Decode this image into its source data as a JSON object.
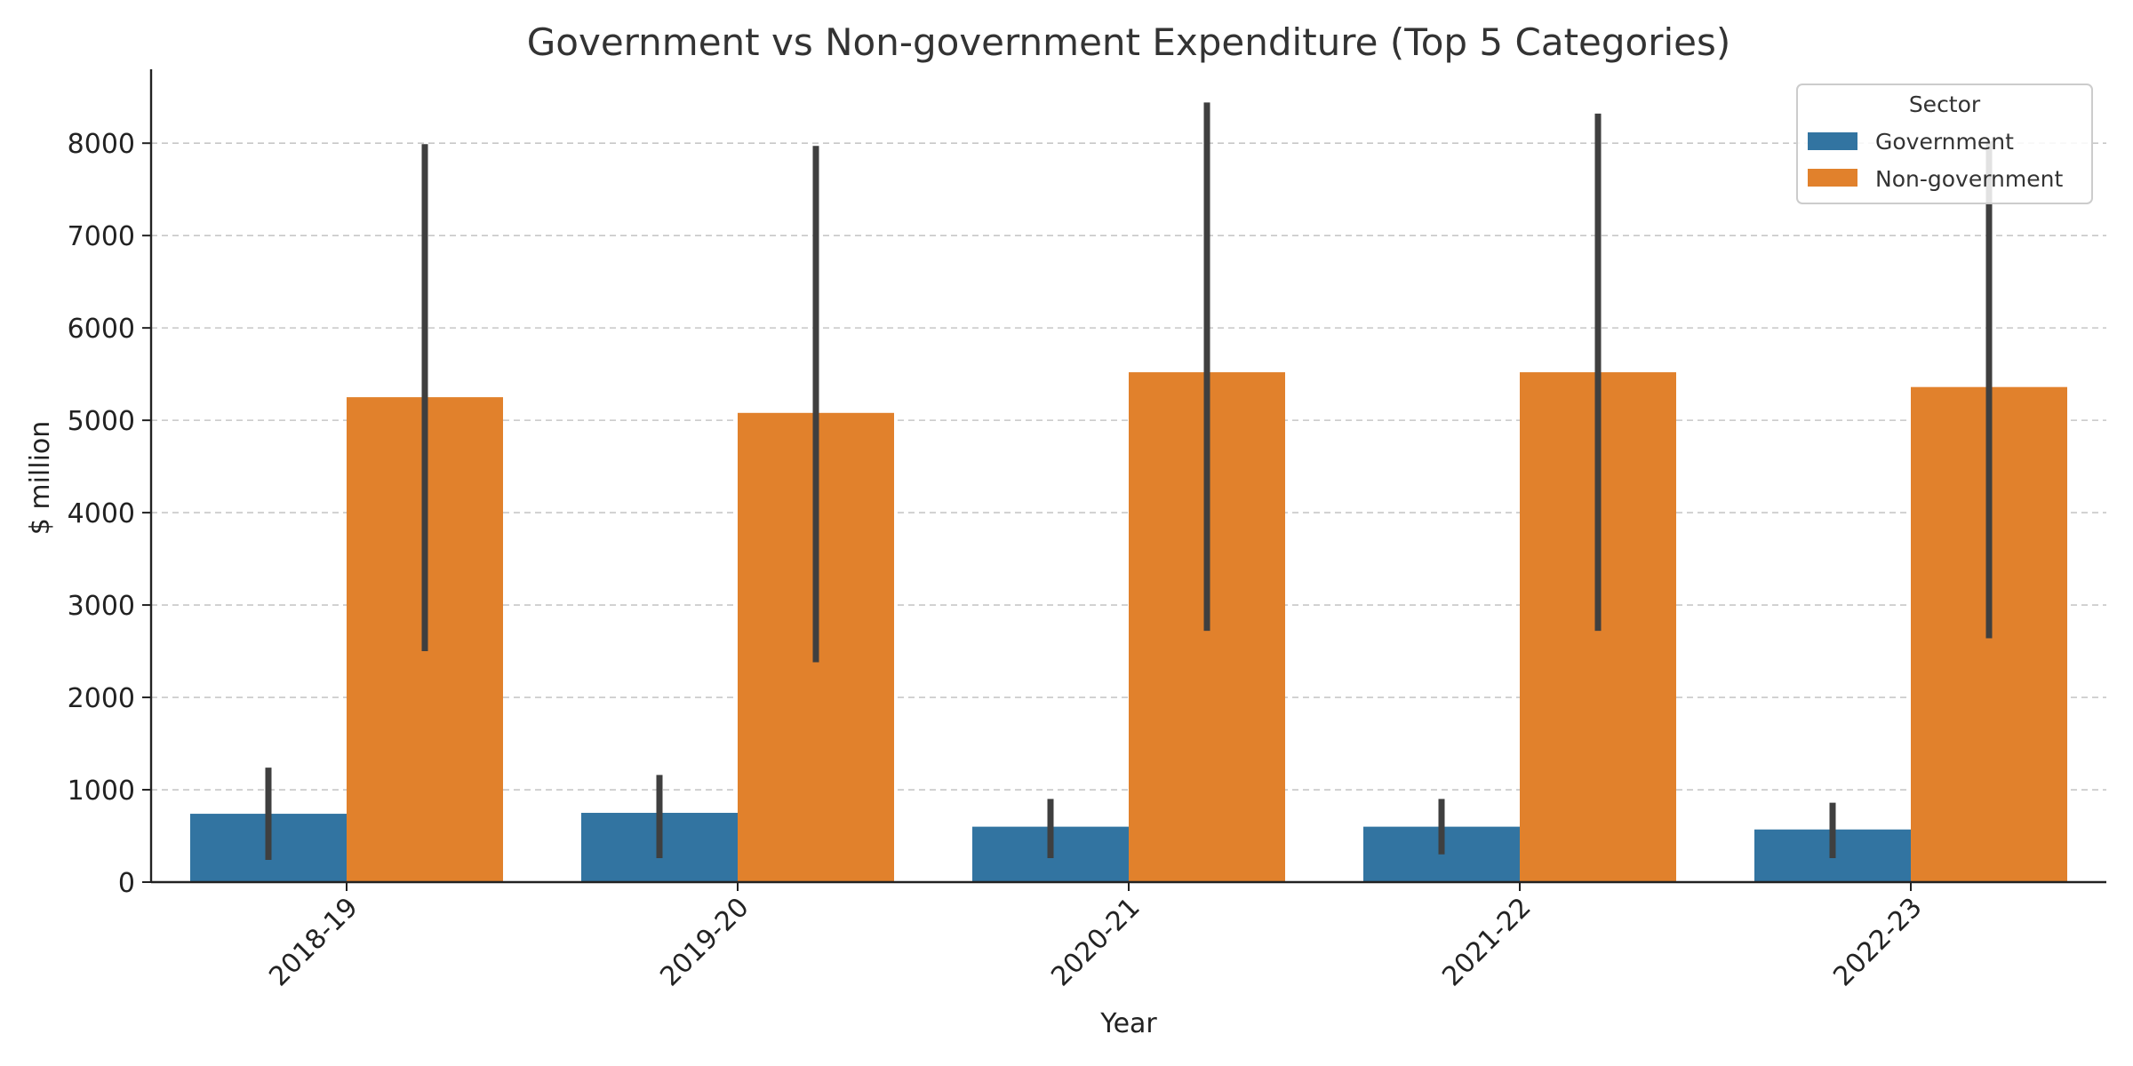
{
  "chart_data": {
    "type": "bar",
    "title": "Government vs Non-government Expenditure (Top 5 Categories)",
    "xlabel": "Year",
    "ylabel": "$ million",
    "categories": [
      "2018-19",
      "2019-20",
      "2020-21",
      "2021-22",
      "2022-23"
    ],
    "ylim": [
      0,
      8800
    ],
    "yticks": [
      0,
      1000,
      2000,
      3000,
      4000,
      5000,
      6000,
      7000,
      8000
    ],
    "grid": "horizontal dashed",
    "legend": {
      "title": "Sector",
      "placement": "top-right"
    },
    "series": [
      {
        "name": "Government",
        "color": "#3274a1",
        "values": [
          740,
          750,
          600,
          600,
          570
        ],
        "error_low": [
          240,
          260,
          260,
          300,
          260
        ],
        "error_high": [
          1240,
          1160,
          900,
          900,
          860
        ]
      },
      {
        "name": "Non-government",
        "color": "#e1812c",
        "values": [
          5250,
          5080,
          5520,
          5520,
          5360
        ],
        "error_low": [
          2500,
          2380,
          2720,
          2720,
          2640
        ],
        "error_high": [
          7990,
          7970,
          8440,
          8320,
          8020
        ]
      }
    ],
    "error_bar_color": "#3f3f3f"
  }
}
